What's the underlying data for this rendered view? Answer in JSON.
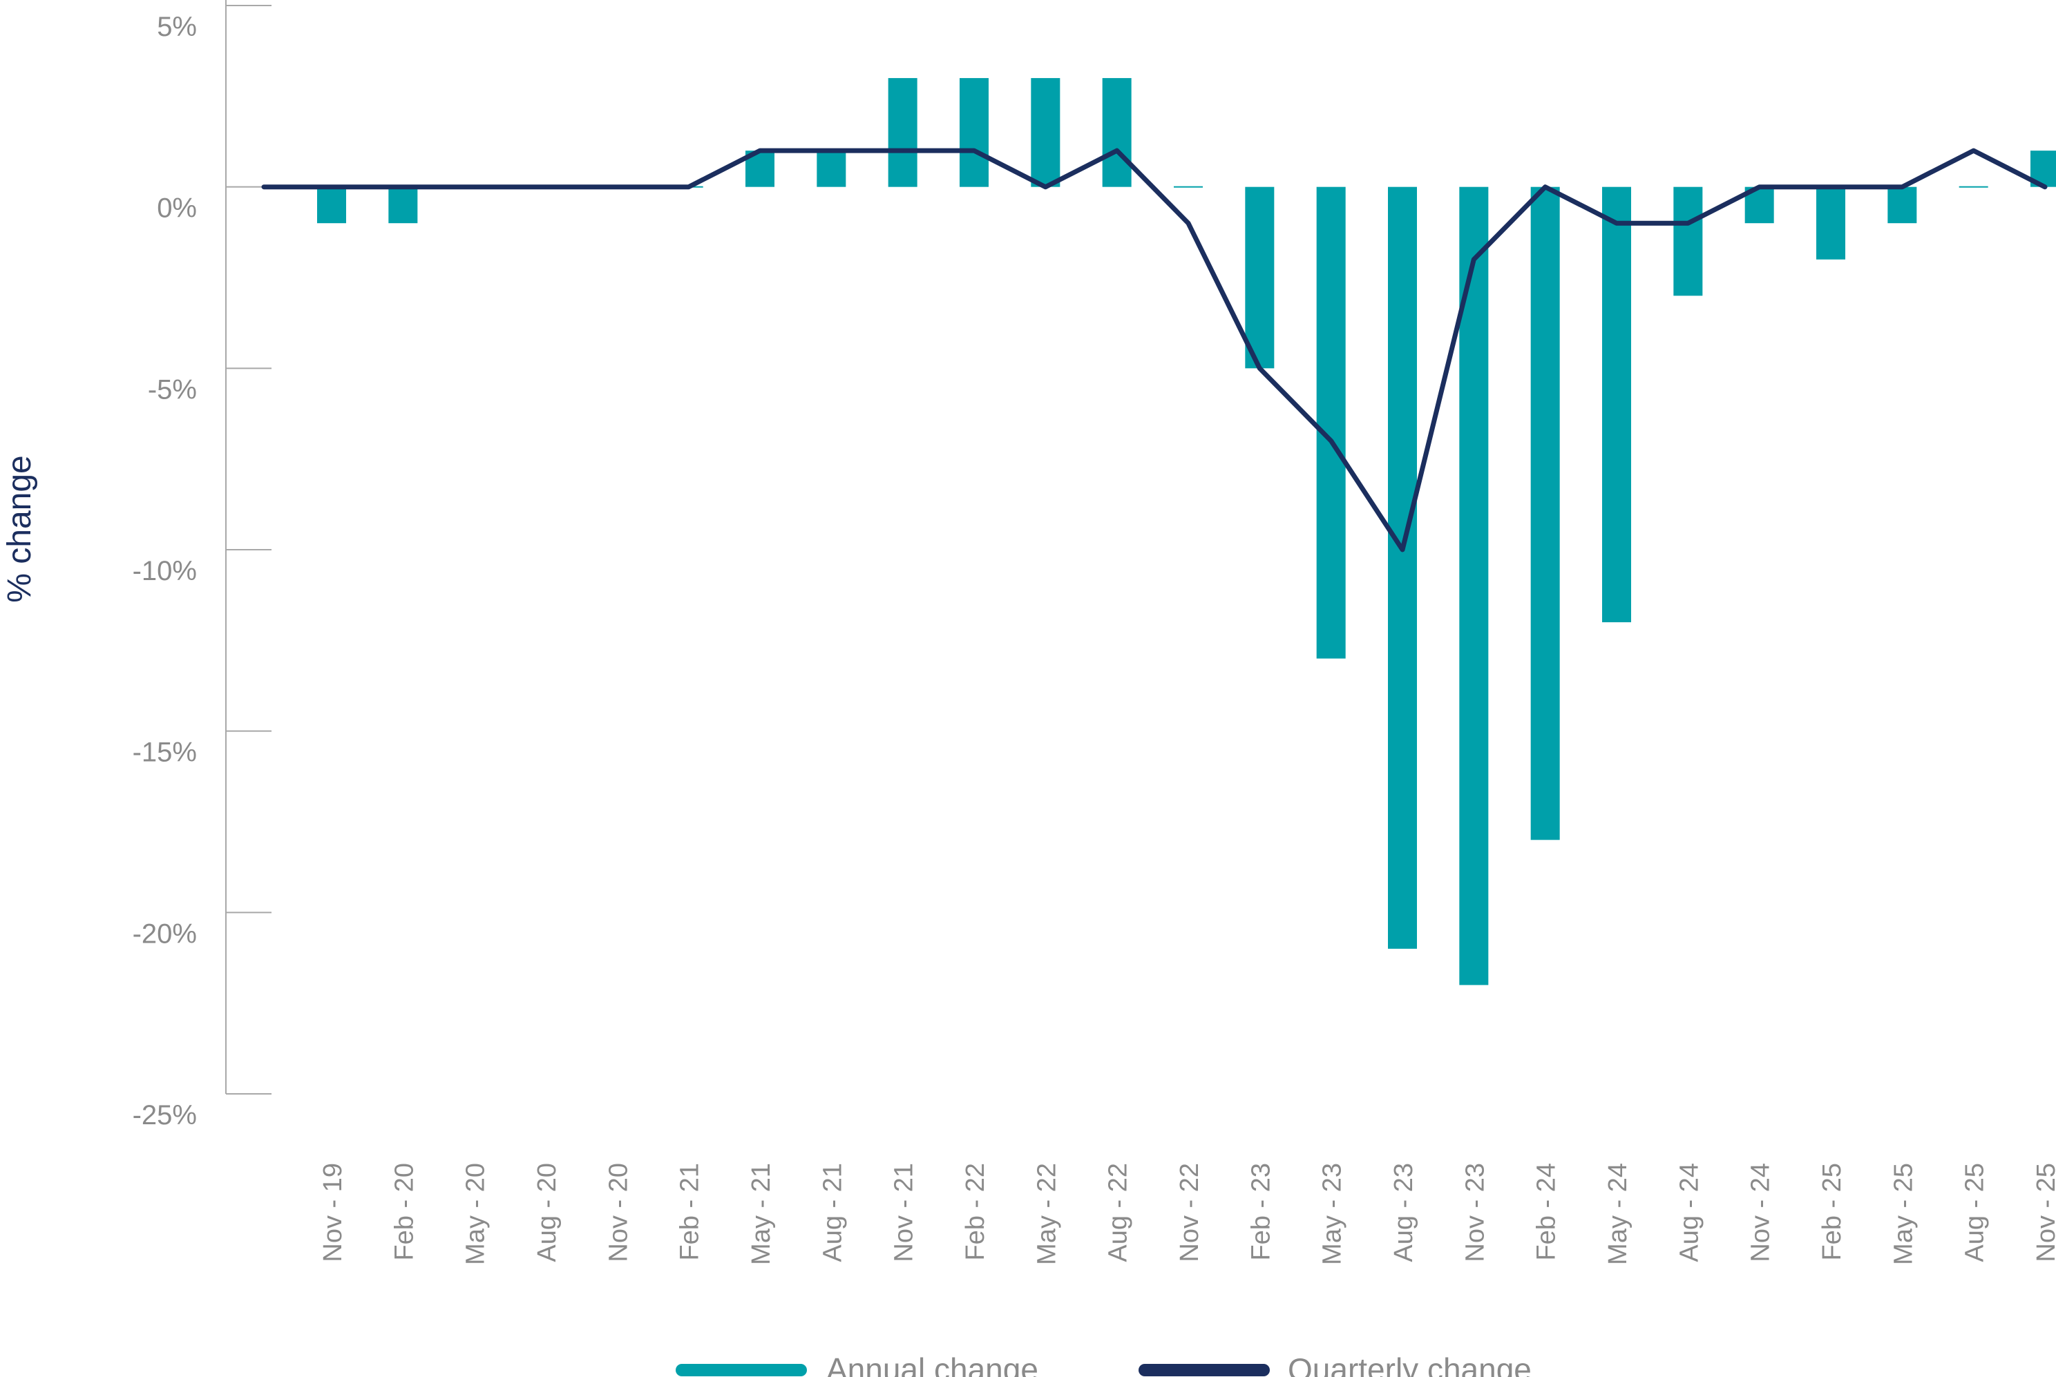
{
  "chart_data": {
    "type": "bar",
    "title": "",
    "xlabel": "",
    "ylabel": "% change",
    "ylim": [
      -25,
      5
    ],
    "yticks": [
      5,
      0,
      -5,
      -10,
      -15,
      -20,
      -25
    ],
    "ytick_labels": [
      "5%",
      "0%",
      "-5%",
      "-10%",
      "-15%",
      "-20%",
      "-25%"
    ],
    "grid": false,
    "legend_position": "bottom-center",
    "categories": [
      "Nov - 19",
      "Feb - 20",
      "May - 20",
      "Aug - 20",
      "Nov - 20",
      "Feb - 21",
      "May - 21",
      "Aug - 21",
      "Nov - 21",
      "Feb - 22",
      "May - 22",
      "Aug - 22",
      "Nov - 22",
      "Feb - 23",
      "May - 23",
      "Aug - 23",
      "Nov - 23",
      "Feb - 24",
      "May - 24",
      "Aug - 24",
      "Nov - 24",
      "Feb - 25",
      "May - 25",
      "Aug - 25",
      "Nov - 25"
    ],
    "series": [
      {
        "name": "Annual change",
        "type": "bar",
        "color": "#00a0aa",
        "values": [
          -1,
          -1,
          0,
          0,
          0,
          0,
          1,
          1,
          3,
          3,
          3,
          3,
          0,
          -5,
          -13,
          -21,
          -22,
          -18,
          -12,
          -3,
          -1,
          -2,
          -1,
          0,
          1
        ]
      },
      {
        "name": "Quarterly change",
        "type": "line",
        "color": "#1b2e5e",
        "values": [
          0,
          0,
          0,
          0,
          0,
          0,
          1,
          1,
          1,
          1,
          0,
          1,
          -1,
          -5,
          -7,
          -10,
          -2,
          0,
          -1,
          -1,
          0,
          0,
          0,
          1,
          0
        ]
      }
    ]
  }
}
